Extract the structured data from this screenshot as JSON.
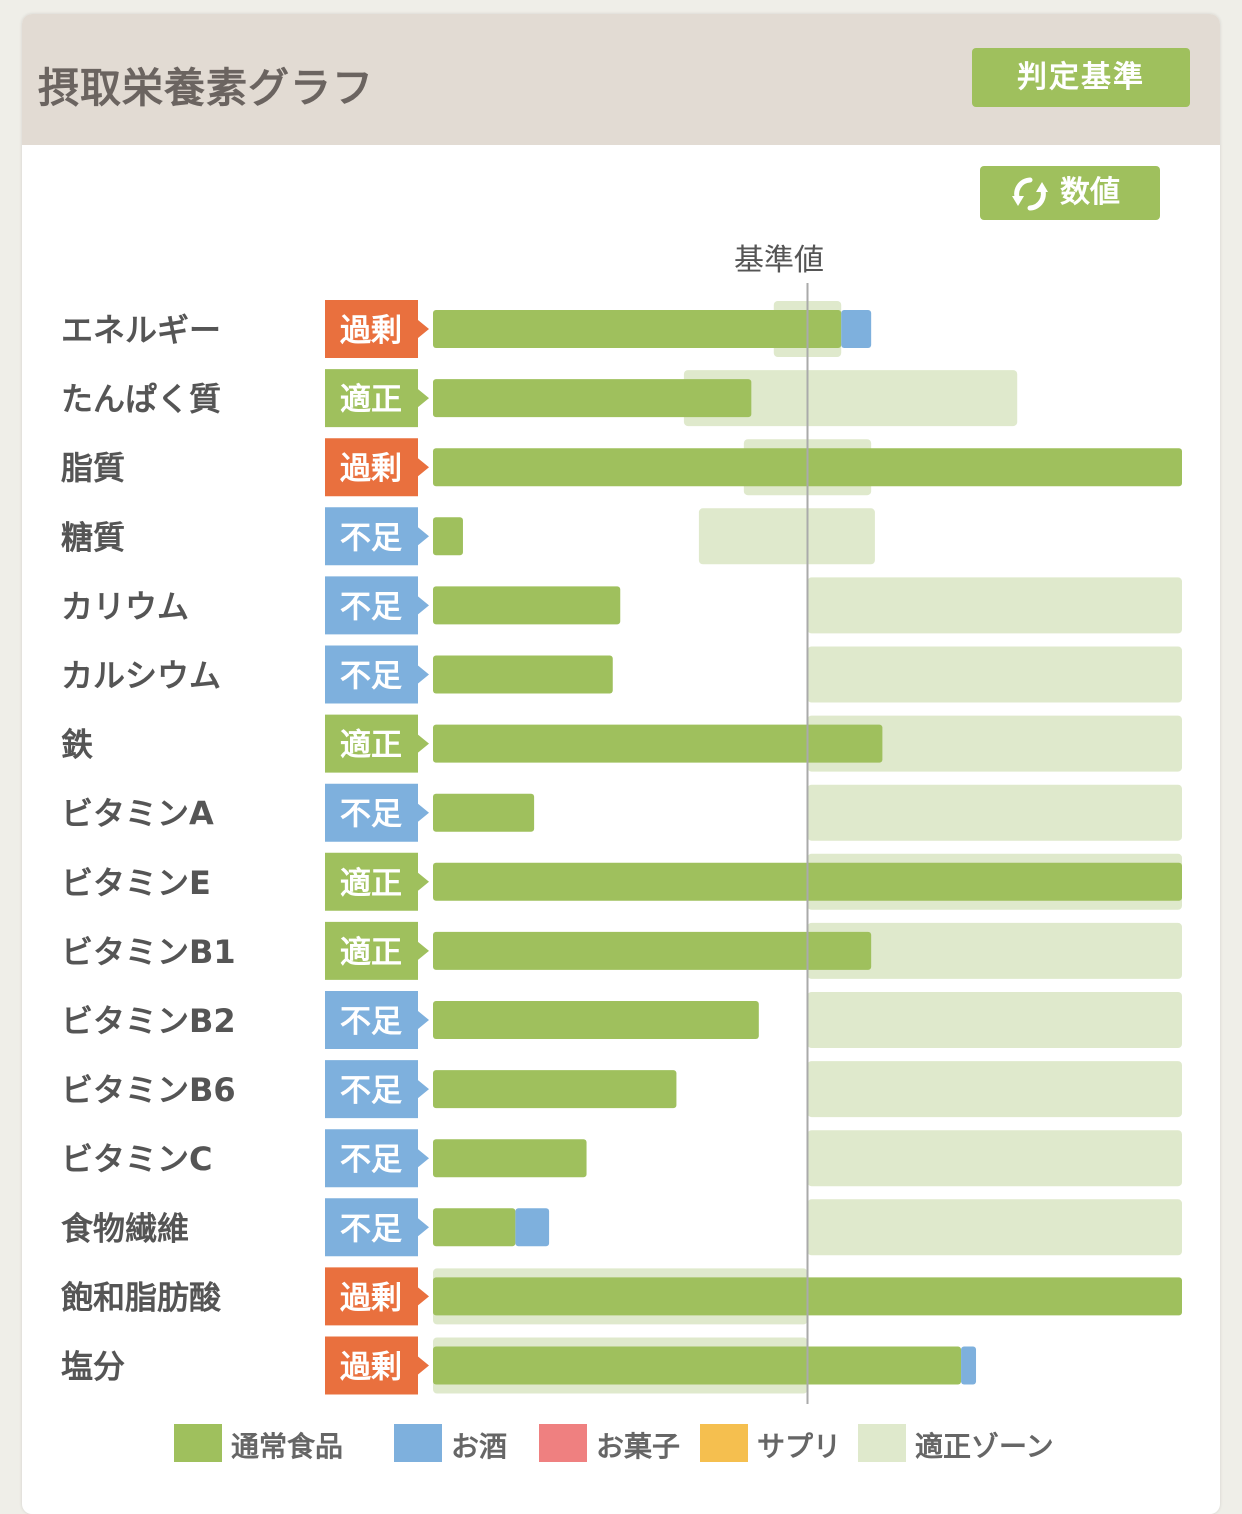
{
  "header": {
    "title": "摂取栄養素グラフ",
    "criteria_button": "判定基準"
  },
  "toolbar": {
    "value_button": "数値",
    "value_button_icon": "refresh-icon"
  },
  "reference_label": "基準値",
  "colors": {
    "normal_food": "#9fc05d",
    "alcohol": "#7eb0dd",
    "snacks": "#ef8080",
    "supplement": "#f5bf4f",
    "optimal_zone": "#dfe9cc",
    "status_excess": "#e9703e",
    "status_optimal": "#9fc05d",
    "status_deficient": "#7eb0dd"
  },
  "status_labels": {
    "excess": "過剰",
    "optimal": "適正",
    "deficient": "不足"
  },
  "legend": [
    {
      "key": "normal_food",
      "label": "通常食品"
    },
    {
      "key": "alcohol",
      "label": "お酒"
    },
    {
      "key": "snacks",
      "label": "お菓子"
    },
    {
      "key": "supplement",
      "label": "サプリ"
    },
    {
      "key": "optimal_zone",
      "label": "適正ゾーン"
    }
  ],
  "chart_data": {
    "type": "bar",
    "orientation": "horizontal",
    "reference_line": 100,
    "xlim": [
      0,
      200
    ],
    "categories": [
      "エネルギー",
      "たんぱく質",
      "脂質",
      "糖質",
      "カリウム",
      "カルシウム",
      "鉄",
      "ビタミンA",
      "ビタミンE",
      "ビタミンB1",
      "ビタミンB2",
      "ビタミンB6",
      "ビタミンC",
      "食物繊維",
      "飽和脂肪酸",
      "塩分"
    ],
    "status": [
      "excess",
      "optimal",
      "excess",
      "deficient",
      "deficient",
      "deficient",
      "optimal",
      "deficient",
      "optimal",
      "optimal",
      "deficient",
      "deficient",
      "deficient",
      "deficient",
      "excess",
      "excess"
    ],
    "series": [
      {
        "name": "通常食品",
        "key": "normal_food",
        "values": [
          109,
          85,
          200,
          8,
          50,
          48,
          120,
          27,
          200,
          117,
          87,
          65,
          41,
          22,
          200,
          141
        ]
      },
      {
        "name": "お酒",
        "key": "alcohol",
        "values": [
          8,
          0,
          0,
          0,
          0,
          0,
          0,
          0,
          0,
          0,
          0,
          0,
          0,
          9,
          0,
          4
        ]
      }
    ],
    "optimal_zone": [
      [
        91,
        109
      ],
      [
        67,
        156
      ],
      [
        83,
        117
      ],
      [
        71,
        118
      ],
      [
        100,
        200
      ],
      [
        100,
        200
      ],
      [
        100,
        200
      ],
      [
        100,
        200
      ],
      [
        100,
        200
      ],
      [
        100,
        200
      ],
      [
        100,
        200
      ],
      [
        100,
        200
      ],
      [
        100,
        200
      ],
      [
        100,
        200
      ],
      [
        0,
        100
      ],
      [
        0,
        100
      ]
    ]
  }
}
